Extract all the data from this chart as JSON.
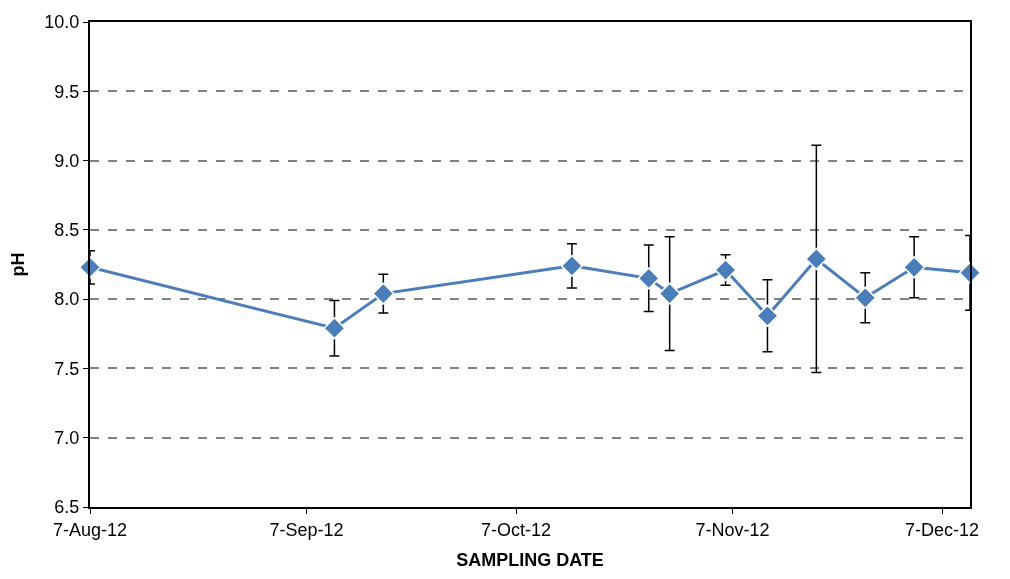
{
  "chart_data": {
    "type": "line",
    "xlabel": "SAMPLING DATE",
    "ylabel": "pH",
    "x": [
      "2012-08-07",
      "2012-09-11",
      "2012-09-18",
      "2012-10-15",
      "2012-10-26",
      "2012-10-29",
      "2012-11-06",
      "2012-11-12",
      "2012-11-19",
      "2012-11-26",
      "2012-12-03",
      "2012-12-11"
    ],
    "series": [
      {
        "color": "#4a7ebb",
        "values": [
          8.23,
          7.79,
          8.04,
          8.24,
          8.15,
          8.04,
          8.21,
          7.88,
          8.29,
          8.01,
          8.23,
          8.19
        ],
        "errors": [
          0.12,
          0.2,
          0.14,
          0.16,
          0.24,
          0.41,
          0.11,
          0.26,
          0.82,
          0.18,
          0.22,
          0.27
        ]
      }
    ],
    "xlim": [
      "2012-08-07",
      "2012-12-11"
    ],
    "xticks": [
      {
        "value": "2012-08-07",
        "label": "7-Aug-12"
      },
      {
        "value": "2012-09-07",
        "label": "7-Sep-12"
      },
      {
        "value": "2012-10-07",
        "label": "7-Oct-12"
      },
      {
        "value": "2012-11-07",
        "label": "7-Nov-12"
      },
      {
        "value": "2012-12-07",
        "label": "7-Dec-12"
      }
    ],
    "ylim": [
      6.5,
      10.0
    ],
    "yticks": [
      {
        "value": 6.5,
        "label": "6.5"
      },
      {
        "value": 7.0,
        "label": "7.0"
      },
      {
        "value": 7.5,
        "label": "7.5"
      },
      {
        "value": 8.0,
        "label": "8.0"
      },
      {
        "value": 8.5,
        "label": "8.5"
      },
      {
        "value": 9.0,
        "label": "9.0"
      },
      {
        "value": 9.5,
        "label": "9.5"
      },
      {
        "value": 10.0,
        "label": "10.0"
      }
    ],
    "grid": "y",
    "marker": "diamond",
    "line_style": "solid"
  }
}
